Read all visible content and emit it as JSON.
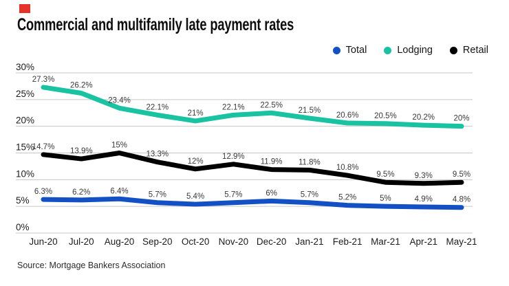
{
  "brand_mark": {
    "color": "#e5332a"
  },
  "source": "Source: Mortgage Bankers Association",
  "chart_data": {
    "type": "line",
    "title": "Commercial and multifamily late payment rates",
    "xlabel": "",
    "ylabel": "",
    "categories": [
      "Jun-20",
      "Jul-20",
      "Aug-20",
      "Sep-20",
      "Oct-20",
      "Nov-20",
      "Dec-20",
      "Jan-21",
      "Feb-21",
      "Mar-21",
      "Apr-21",
      "May-21"
    ],
    "series": [
      {
        "name": "Total",
        "color": "#1250c4",
        "values": [
          6.3,
          6.2,
          6.4,
          5.7,
          5.4,
          5.7,
          6,
          5.7,
          5.2,
          5,
          4.9,
          4.8
        ],
        "labels": [
          "6.3%",
          "6.2%",
          "6.4%",
          "5.7%",
          "5.4%",
          "5.7%",
          "6%",
          "5.7%",
          "5.2%",
          "5%",
          "4.9%",
          "4.8%"
        ]
      },
      {
        "name": "Lodging",
        "color": "#19c3a2",
        "values": [
          27.3,
          26.2,
          23.4,
          22.1,
          21,
          22.1,
          22.5,
          21.5,
          20.6,
          20.5,
          20.2,
          20
        ],
        "labels": [
          "27.3%",
          "26.2%",
          "23.4%",
          "22.1%",
          "21%",
          "22.1%",
          "22.5%",
          "21.5%",
          "20.6%",
          "20.5%",
          "20.2%",
          "20%"
        ]
      },
      {
        "name": "Retail",
        "color": "#000000",
        "values": [
          14.7,
          13.9,
          15,
          13.3,
          12,
          12.9,
          11.9,
          11.8,
          10.8,
          9.5,
          9.3,
          9.5
        ],
        "labels": [
          "14.7%",
          "13.9%",
          "15%",
          "13.3%",
          "12%",
          "12.9%",
          "11.9%",
          "11.8%",
          "10.8%",
          "9.5%",
          "9.3%",
          "9.5%"
        ]
      }
    ],
    "ylim": [
      0,
      30
    ],
    "ytick_step": 5,
    "ytick_labels": [
      "0%",
      "5%",
      "10%",
      "15%",
      "20%",
      "25%",
      "30%"
    ],
    "grid": true,
    "grid_color": "#c6c6c6",
    "legend_position": "top-right"
  }
}
